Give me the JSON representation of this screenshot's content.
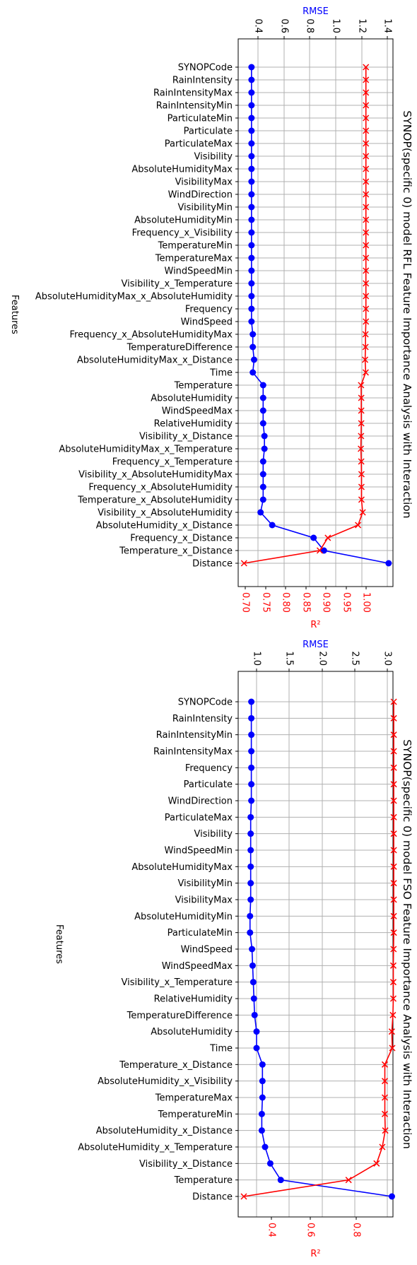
{
  "colors": {
    "rmse": "#0000ff",
    "r2": "#ff0000",
    "grid": "#b0b0b0"
  },
  "chart_data": [
    {
      "type": "line",
      "title": "SYNOP(specific 0) model RFL Feature Importance Analysis with Interaction",
      "ylabel": "Features",
      "top_axis_label": "RMSE",
      "bottom_axis_label": "R²",
      "rmse_ticks": [
        "0.4",
        "0.6",
        "0.8",
        "1.0",
        "1.2",
        "1.4"
      ],
      "rmse_range": [
        0.28,
        1.42
      ],
      "r2_ticks": [
        "0.70",
        "0.75",
        "0.80",
        "0.85",
        "0.90",
        "0.95",
        "1.00"
      ],
      "r2_range": [
        0.691,
        1.003
      ],
      "grid": true,
      "categories": [
        "SYNOPCode",
        "RainIntensity",
        "RainIntensityMax",
        "RainIntensityMin",
        "ParticulateMin",
        "Particulate",
        "ParticulateMax",
        "Visibility",
        "AbsoluteHumidityMax",
        "VisibilityMax",
        "WindDirection",
        "VisibilityMin",
        "AbsoluteHumidityMin",
        "Frequency_x_Visibility",
        "TemperatureMin",
        "TemperatureMax",
        "WindSpeedMin",
        "Visibility_x_Temperature",
        "AbsoluteHumidityMax_x_AbsoluteHumidity",
        "Frequency",
        "WindSpeed",
        "Frequency_x_AbsoluteHumidityMax",
        "TemperatureDifference",
        "AbsoluteHumidityMax_x_Distance",
        "Time",
        "Temperature",
        "AbsoluteHumidity",
        "WindSpeedMax",
        "RelativeHumidity",
        "Visibility_x_Distance",
        "AbsoluteHumidityMax_x_Temperature",
        "Frequency_x_Temperature",
        "Visibility_x_AbsoluteHumidityMax",
        "Frequency_x_AbsoluteHumidity",
        "Temperature_x_AbsoluteHumidity",
        "Visibility_x_AbsoluteHumidity",
        "AbsoluteHumidity_x_Distance",
        "Frequency_x_Distance",
        "Temperature_x_Distance",
        "Distance"
      ],
      "series": [
        {
          "name": "RMSE",
          "axis": "rmse",
          "marker": "circle",
          "values": [
            0.35,
            0.35,
            0.35,
            0.35,
            0.35,
            0.35,
            0.35,
            0.35,
            0.35,
            0.35,
            0.35,
            0.35,
            0.35,
            0.35,
            0.35,
            0.35,
            0.35,
            0.35,
            0.35,
            0.35,
            0.35,
            0.36,
            0.36,
            0.37,
            0.36,
            0.44,
            0.44,
            0.44,
            0.44,
            0.45,
            0.45,
            0.44,
            0.44,
            0.44,
            0.44,
            0.42,
            0.51,
            0.83,
            0.91,
            1.41
          ]
        },
        {
          "name": "R²",
          "axis": "r2",
          "marker": "x",
          "values": [
            0.9995,
            0.9995,
            0.9995,
            0.9995,
            0.9995,
            0.9995,
            0.9995,
            0.9995,
            0.9995,
            0.9995,
            0.9995,
            0.9995,
            0.9995,
            0.9995,
            0.9995,
            0.9995,
            0.9995,
            0.9995,
            0.9995,
            0.9995,
            0.9995,
            0.9985,
            0.9985,
            0.9975,
            0.999,
            0.9875,
            0.988,
            0.988,
            0.988,
            0.9875,
            0.987,
            0.988,
            0.9885,
            0.9885,
            0.9885,
            0.9915,
            0.98,
            0.905,
            0.885,
            0.697
          ]
        }
      ]
    },
    {
      "type": "line",
      "title": "SYNOP(specific 0) model FSO Feature Importance Analysis with Interaction",
      "ylabel": "Features",
      "top_axis_label": "RMSE",
      "bottom_axis_label": "R²",
      "rmse_ticks": [
        "1.0",
        "1.5",
        "2.0",
        "2.5",
        "3.0"
      ],
      "rmse_range": [
        0.82,
        3.1
      ],
      "r2_ticks": [
        "0.4",
        "0.6",
        "0.8"
      ],
      "r2_range": [
        0.255,
        0.99
      ],
      "grid": true,
      "categories": [
        "SYNOPCode",
        "RainIntensity",
        "RainIntensityMin",
        "RainIntensityMax",
        "Frequency",
        "Particulate",
        "WindDirection",
        "ParticulateMax",
        "Visibility",
        "WindSpeedMin",
        "AbsoluteHumidityMax",
        "VisibilityMin",
        "VisibilityMax",
        "AbsoluteHumidityMin",
        "ParticulateMin",
        "WindSpeed",
        "WindSpeedMax",
        "Visibility_x_Temperature",
        "RelativeHumidity",
        "TemperatureDifference",
        "AbsoluteHumidity",
        "Time",
        "Temperature_x_Distance",
        "AbsoluteHumidity_x_Visibility",
        "TemperatureMax",
        "TemperatureMin",
        "AbsoluteHumidity_x_Distance",
        "AbsoluteHumidity_x_Temperature",
        "Visibility_x_Distance",
        "Temperature",
        "Distance"
      ],
      "series": [
        {
          "name": "RMSE",
          "axis": "rmse",
          "marker": "circle",
          "values": [
            0.92,
            0.92,
            0.92,
            0.92,
            0.92,
            0.92,
            0.92,
            0.91,
            0.91,
            0.91,
            0.91,
            0.91,
            0.91,
            0.9,
            0.9,
            0.93,
            0.94,
            0.95,
            0.96,
            0.97,
            1.0,
            1.0,
            1.09,
            1.09,
            1.09,
            1.08,
            1.08,
            1.13,
            1.21,
            1.37,
            3.07
          ]
        },
        {
          "name": "R²",
          "axis": "r2",
          "marker": "x",
          "values": [
            0.977,
            0.977,
            0.977,
            0.977,
            0.977,
            0.977,
            0.977,
            0.977,
            0.977,
            0.977,
            0.977,
            0.977,
            0.977,
            0.977,
            0.977,
            0.976,
            0.975,
            0.975,
            0.975,
            0.973,
            0.968,
            0.97,
            0.935,
            0.935,
            0.935,
            0.935,
            0.937,
            0.923,
            0.896,
            0.764,
            0.27
          ]
        }
      ]
    }
  ]
}
